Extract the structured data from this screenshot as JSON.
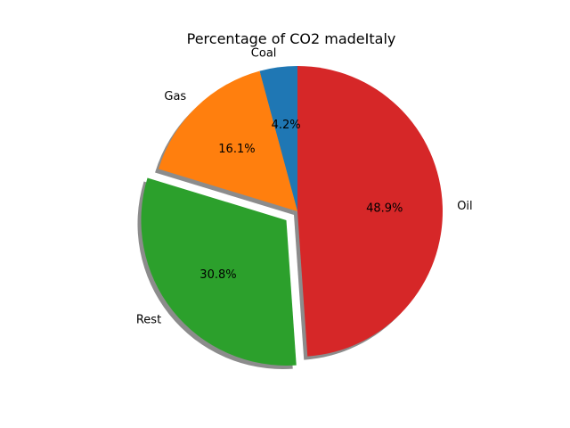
{
  "chart_data": {
    "type": "pie",
    "title": "Percentage of CO2 madeItaly",
    "slices": [
      {
        "label": "Coal",
        "value": 4.2,
        "pct_text": "4.2%",
        "color": "#1f77b4",
        "explode": false
      },
      {
        "label": "Gas",
        "value": 16.1,
        "pct_text": "16.1%",
        "color": "#ff7f0e",
        "explode": false
      },
      {
        "label": "Rest",
        "value": 30.8,
        "pct_text": "30.8%",
        "color": "#2ca02c",
        "explode": true
      },
      {
        "label": "Oil",
        "value": 48.9,
        "pct_text": "48.9%",
        "color": "#d62728",
        "explode": false
      }
    ],
    "start_angle_deg": 90,
    "direction": "counterclockwise",
    "shadow": true
  }
}
